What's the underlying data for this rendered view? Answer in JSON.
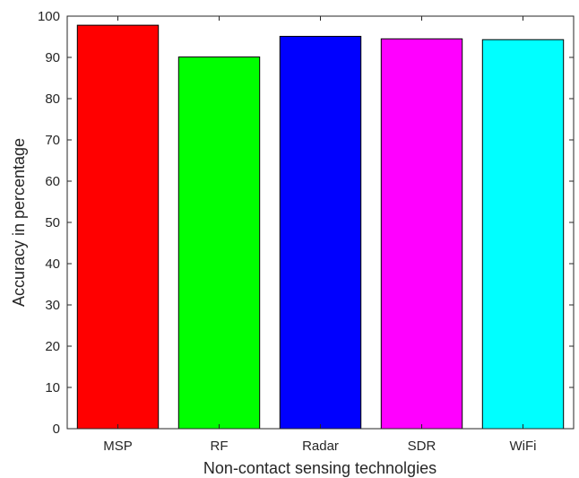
{
  "chart_data": {
    "type": "bar",
    "title": "",
    "xlabel": "Non-contact sensing technolgies",
    "ylabel": "Accuracy in percentage",
    "categories": [
      "MSP",
      "RF",
      "Radar",
      "SDR",
      "WiFi"
    ],
    "values": [
      97.8,
      90.1,
      95.1,
      94.5,
      94.3
    ],
    "colors": [
      "#ff0000",
      "#00ff00",
      "#0000ff",
      "#ff00ff",
      "#00ffff"
    ],
    "ylim": [
      0,
      100
    ],
    "yticks": [
      0,
      10,
      20,
      30,
      40,
      50,
      60,
      70,
      80,
      90,
      100
    ],
    "grid": false,
    "legend": "none"
  }
}
